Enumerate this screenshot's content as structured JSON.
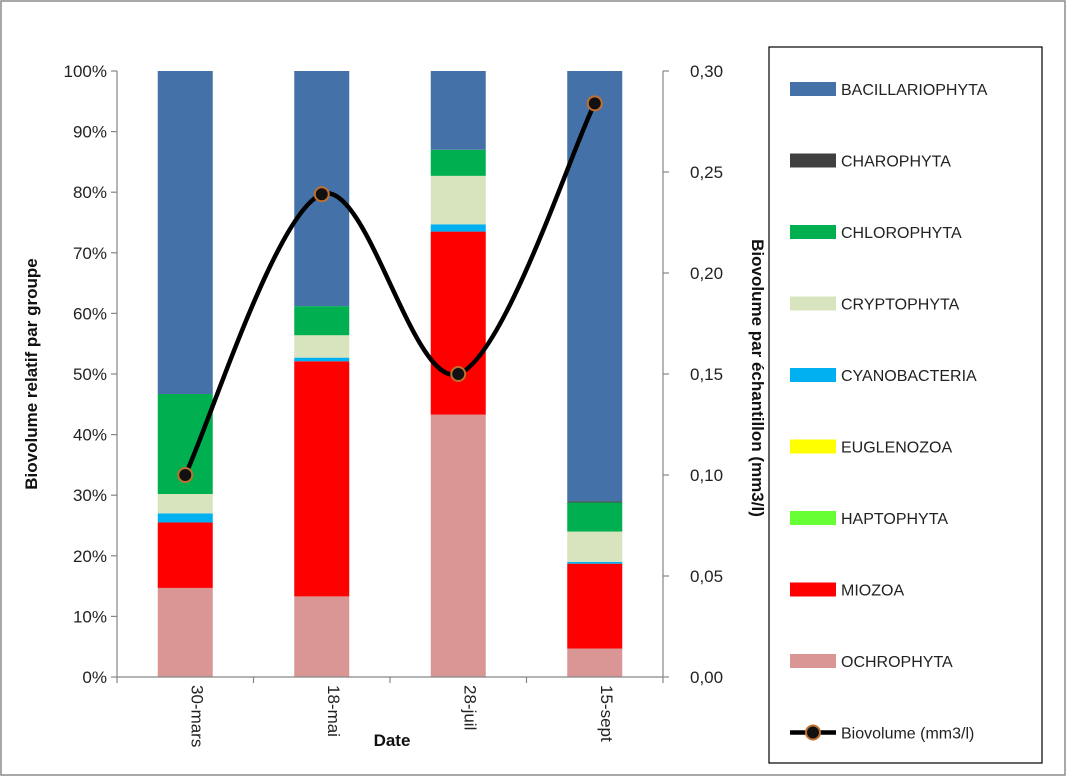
{
  "chart_data": {
    "type": "bar",
    "stacked": "percent",
    "categories": [
      "30-mars",
      "18-mai",
      "28-juil",
      "15-sept"
    ],
    "xlabel": "Date",
    "ylabel": "Biovolume relatif par groupe",
    "y2label": "Biovolume par échantillon (mm3/l)",
    "ylim": [
      0,
      100
    ],
    "y2lim": [
      0,
      0.3
    ],
    "y_ticks": [
      "0%",
      "10%",
      "20%",
      "30%",
      "40%",
      "50%",
      "60%",
      "70%",
      "80%",
      "90%",
      "100%"
    ],
    "y2_ticks": [
      "0,00",
      "0,05",
      "0,10",
      "0,15",
      "0,20",
      "0,25",
      "0,30"
    ],
    "grid": false,
    "legend_position": "right",
    "series": [
      {
        "name": "OCHROPHYTA",
        "color": "#d99694",
        "values": [
          14.7,
          13.3,
          43.3,
          4.7
        ]
      },
      {
        "name": "MIOZOA",
        "color": "#ff0000",
        "values": [
          10.8,
          38.8,
          30.2,
          14.0
        ]
      },
      {
        "name": "HAPTOPHYTA",
        "color": "#66ff33",
        "values": [
          0.0,
          0.0,
          0.0,
          0.0
        ]
      },
      {
        "name": "EUGLENOZOA",
        "color": "#ffff00",
        "values": [
          0.0,
          0.0,
          0.0,
          0.0
        ]
      },
      {
        "name": "CYANOBACTERIA",
        "color": "#00b0f0",
        "values": [
          1.5,
          0.6,
          1.2,
          0.3
        ]
      },
      {
        "name": "CRYPTOPHYTA",
        "color": "#d7e4bd",
        "values": [
          3.2,
          3.7,
          8.0,
          5.0
        ]
      },
      {
        "name": "CHLOROPHYTA",
        "color": "#00b050",
        "values": [
          16.5,
          4.8,
          4.3,
          4.8
        ]
      },
      {
        "name": "CHAROPHYTA",
        "color": "#404040",
        "values": [
          0.0,
          0.0,
          0.0,
          0.2
        ]
      },
      {
        "name": "BACILLARIOPHYTA",
        "color": "#4472a8",
        "values": [
          53.3,
          38.8,
          13.0,
          71.0
        ]
      }
    ],
    "legend_order": [
      "BACILLARIOPHYTA",
      "CHAROPHYTA",
      "CHLOROPHYTA",
      "CRYPTOPHYTA",
      "CYANOBACTERIA",
      "EUGLENOZOA",
      "HAPTOPHYTA",
      "MIOZOA",
      "OCHROPHYTA"
    ],
    "line_series": {
      "name": "Biovolume (mm3/l)",
      "axis": "secondary",
      "line_color": "#000000",
      "marker_fill": "#111111",
      "marker_edge": "#c0702e",
      "values": [
        0.1,
        0.239,
        0.15,
        0.284
      ]
    }
  }
}
